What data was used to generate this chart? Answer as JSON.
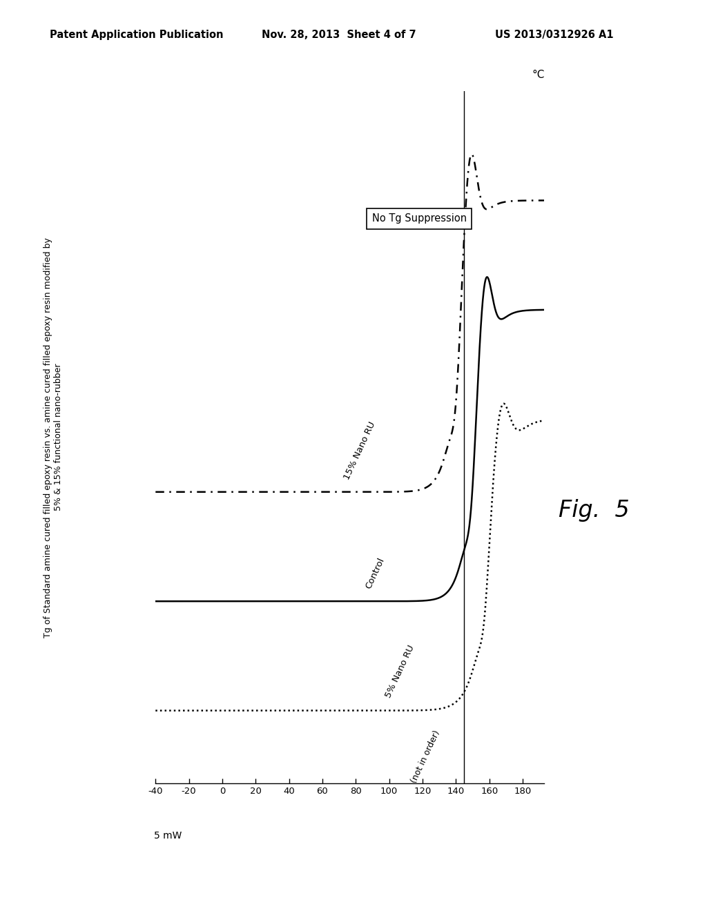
{
  "header_left": "Patent Application Publication",
  "header_center": "Nov. 28, 2013  Sheet 4 of 7",
  "header_right": "US 2013/0312926 A1",
  "title_rotated_line1": "Tg of Standard amine cured filled epoxy resin vs. amine cured filled epoxy resin modified by",
  "title_rotated_line2": "5% & 15% functional nano-rubber",
  "scale_label": "5 mW",
  "xlabel_unit": "°C",
  "x_ticks": [
    -40,
    -20,
    0,
    20,
    40,
    60,
    80,
    100,
    120,
    140,
    160,
    180
  ],
  "vline_x": 145,
  "annotation_box": "No Tg Suppression",
  "annotation_not_in_order": "(not in order)",
  "fig_label": "Fig.  5",
  "curve_control_label": "Control",
  "curve_15_label": "15% Nano RU",
  "curve_5_label": "5% Nano RU",
  "background_color": "#ffffff",
  "line_color": "#000000",
  "tg_control": 152,
  "tg_15nano": 143,
  "tg_5nano": 161
}
